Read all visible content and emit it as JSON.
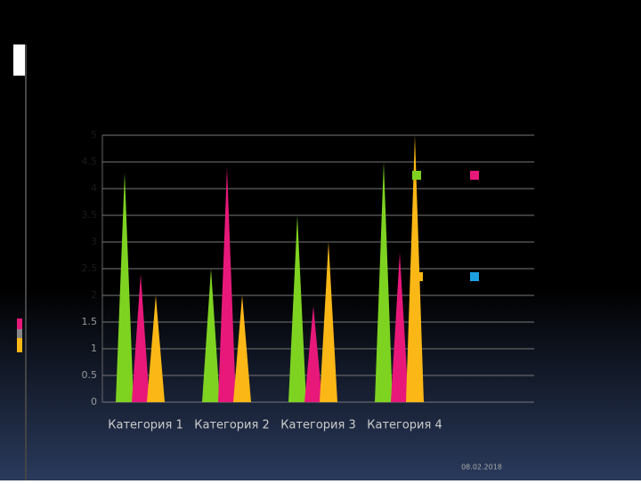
{
  "chart_data": {
    "type": "cone",
    "categories": [
      "Категория 1",
      "Категория 2",
      "Категория 3",
      "Категория 4"
    ],
    "series": [
      {
        "color": "#7ed321",
        "values": [
          4.3,
          2.5,
          3.5,
          4.5
        ]
      },
      {
        "color": "#e8187a",
        "values": [
          2.4,
          4.4,
          1.8,
          2.8
        ]
      },
      {
        "color": "#fbb715",
        "values": [
          2,
          2,
          3,
          5
        ]
      }
    ],
    "ylim": [
      0,
      5
    ],
    "yticks": [
      0,
      0.5,
      1,
      1.5,
      2,
      2.5,
      3,
      3.5,
      4,
      4.5,
      5
    ],
    "grid": true
  },
  "footer": {
    "date": "08.02.2018"
  }
}
